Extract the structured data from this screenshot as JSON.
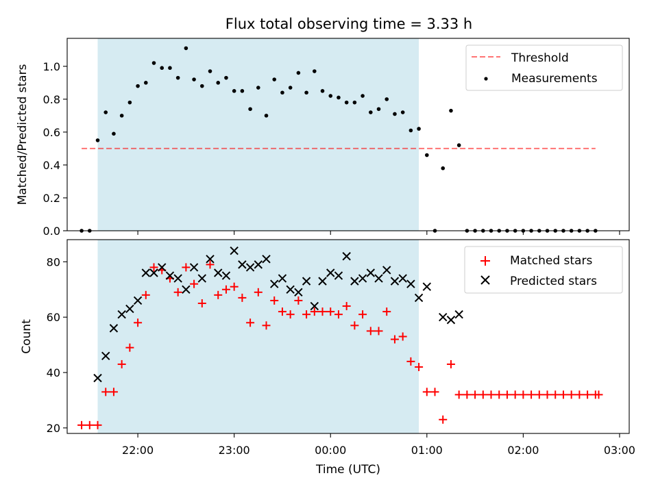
{
  "title": "Flux total observing time = 3.33 h",
  "colors": {
    "band": "#add8e6",
    "threshold": "#ff0000",
    "matched": "#ff0000",
    "predicted": "#000000",
    "measurement": "#000000"
  },
  "chart_data": [
    {
      "type": "scatter",
      "ylabel": "Matched/Predicted stars",
      "ylim": [
        0,
        1.17
      ],
      "yticks": [
        "0.0",
        "0.2",
        "0.4",
        "0.6",
        "0.8",
        "1.0"
      ],
      "xlim": [
        "21:16",
        "03:06"
      ],
      "shaded_interval": [
        "21:35",
        "00:55"
      ],
      "threshold": {
        "label": "Threshold",
        "value": 0.5,
        "x_range": [
          "21:25",
          "02:45"
        ]
      },
      "legend": [
        "Threshold",
        "Measurements"
      ],
      "legend_position": "top-right",
      "series": [
        {
          "name": "Measurements",
          "points": [
            [
              "21:25",
              0
            ],
            [
              "21:30",
              0
            ],
            [
              "21:35",
              0.55
            ],
            [
              "21:40",
              0.72
            ],
            [
              "21:45",
              0.59
            ],
            [
              "21:50",
              0.7
            ],
            [
              "21:55",
              0.78
            ],
            [
              "22:00",
              0.88
            ],
            [
              "22:05",
              0.9
            ],
            [
              "22:10",
              1.02
            ],
            [
              "22:15",
              0.99
            ],
            [
              "22:20",
              0.99
            ],
            [
              "22:25",
              0.93
            ],
            [
              "22:30",
              1.11
            ],
            [
              "22:35",
              0.92
            ],
            [
              "22:40",
              0.88
            ],
            [
              "22:45",
              0.97
            ],
            [
              "22:50",
              0.9
            ],
            [
              "22:55",
              0.93
            ],
            [
              "23:00",
              0.85
            ],
            [
              "23:05",
              0.85
            ],
            [
              "23:10",
              0.74
            ],
            [
              "23:15",
              0.87
            ],
            [
              "23:20",
              0.7
            ],
            [
              "23:25",
              0.92
            ],
            [
              "23:30",
              0.84
            ],
            [
              "23:35",
              0.87
            ],
            [
              "23:40",
              0.96
            ],
            [
              "23:45",
              0.84
            ],
            [
              "23:50",
              0.97
            ],
            [
              "23:55",
              0.85
            ],
            [
              "00:00",
              0.82
            ],
            [
              "00:05",
              0.81
            ],
            [
              "00:10",
              0.78
            ],
            [
              "00:15",
              0.78
            ],
            [
              "00:20",
              0.82
            ],
            [
              "00:25",
              0.72
            ],
            [
              "00:30",
              0.74
            ],
            [
              "00:35",
              0.8
            ],
            [
              "00:40",
              0.71
            ],
            [
              "00:45",
              0.72
            ],
            [
              "00:50",
              0.61
            ],
            [
              "00:55",
              0.62
            ],
            [
              "01:00",
              0.46
            ],
            [
              "01:05",
              0
            ],
            [
              "01:10",
              0.38
            ],
            [
              "01:15",
              0.73
            ],
            [
              "01:20",
              0.52
            ],
            [
              "01:25",
              0
            ],
            [
              "01:30",
              0
            ],
            [
              "01:35",
              0
            ],
            [
              "01:40",
              0
            ],
            [
              "01:45",
              0
            ],
            [
              "01:50",
              0
            ],
            [
              "01:55",
              0
            ],
            [
              "02:00",
              0
            ],
            [
              "02:05",
              0
            ],
            [
              "02:10",
              0
            ],
            [
              "02:15",
              0
            ],
            [
              "02:20",
              0
            ],
            [
              "02:25",
              0
            ],
            [
              "02:30",
              0
            ],
            [
              "02:35",
              0
            ],
            [
              "02:40",
              0
            ],
            [
              "02:45",
              0
            ]
          ]
        }
      ]
    },
    {
      "type": "scatter",
      "xlabel": "Time (UTC)",
      "ylabel": "Count",
      "ylim": [
        18,
        88
      ],
      "yticks": [
        "20",
        "40",
        "60",
        "80"
      ],
      "xlim": [
        "21:16",
        "03:06"
      ],
      "xticks": [
        "22:00",
        "23:00",
        "00:00",
        "01:00",
        "02:00",
        "03:00"
      ],
      "shaded_interval": [
        "21:35",
        "00:55"
      ],
      "legend": [
        "Matched stars",
        "Predicted stars"
      ],
      "legend_position": "top-right",
      "series": [
        {
          "name": "Matched stars",
          "marker": "+",
          "points": [
            [
              "21:25",
              21
            ],
            [
              "21:30",
              21
            ],
            [
              "21:35",
              21
            ],
            [
              "21:40",
              33
            ],
            [
              "21:45",
              33
            ],
            [
              "21:50",
              43
            ],
            [
              "21:55",
              49
            ],
            [
              "22:00",
              58
            ],
            [
              "22:05",
              68
            ],
            [
              "22:10",
              78
            ],
            [
              "22:15",
              77
            ],
            [
              "22:20",
              74
            ],
            [
              "22:25",
              69
            ],
            [
              "22:30",
              78
            ],
            [
              "22:35",
              72
            ],
            [
              "22:40",
              65
            ],
            [
              "22:45",
              79
            ],
            [
              "22:50",
              68
            ],
            [
              "22:55",
              70
            ],
            [
              "23:00",
              71
            ],
            [
              "23:05",
              67
            ],
            [
              "23:10",
              58
            ],
            [
              "23:15",
              69
            ],
            [
              "23:20",
              57
            ],
            [
              "23:25",
              66
            ],
            [
              "23:30",
              62
            ],
            [
              "23:35",
              61
            ],
            [
              "23:40",
              66
            ],
            [
              "23:45",
              61
            ],
            [
              "23:50",
              62
            ],
            [
              "23:55",
              62
            ],
            [
              "00:00",
              62
            ],
            [
              "00:05",
              61
            ],
            [
              "00:10",
              64
            ],
            [
              "00:15",
              57
            ],
            [
              "00:20",
              61
            ],
            [
              "00:25",
              55
            ],
            [
              "00:30",
              55
            ],
            [
              "00:35",
              62
            ],
            [
              "00:40",
              52
            ],
            [
              "00:45",
              53
            ],
            [
              "00:50",
              44
            ],
            [
              "00:55",
              42
            ],
            [
              "01:00",
              33
            ],
            [
              "01:05",
              33
            ],
            [
              "01:10",
              23
            ],
            [
              "01:15",
              43
            ],
            [
              "01:20",
              32
            ],
            [
              "01:25",
              32
            ],
            [
              "01:30",
              32
            ],
            [
              "01:35",
              32
            ],
            [
              "01:40",
              32
            ],
            [
              "01:45",
              32
            ],
            [
              "01:50",
              32
            ],
            [
              "01:55",
              32
            ],
            [
              "02:00",
              32
            ],
            [
              "02:05",
              32
            ],
            [
              "02:10",
              32
            ],
            [
              "02:15",
              32
            ],
            [
              "02:20",
              32
            ],
            [
              "02:25",
              32
            ],
            [
              "02:30",
              32
            ],
            [
              "02:35",
              32
            ],
            [
              "02:40",
              32
            ],
            [
              "02:45",
              32
            ],
            [
              "02:47",
              32
            ]
          ]
        },
        {
          "name": "Predicted stars",
          "marker": "x",
          "points": [
            [
              "21:35",
              38
            ],
            [
              "21:40",
              46
            ],
            [
              "21:45",
              56
            ],
            [
              "21:50",
              61
            ],
            [
              "21:55",
              63
            ],
            [
              "22:00",
              66
            ],
            [
              "22:05",
              76
            ],
            [
              "22:10",
              76
            ],
            [
              "22:15",
              78
            ],
            [
              "22:20",
              75
            ],
            [
              "22:25",
              74
            ],
            [
              "22:30",
              70
            ],
            [
              "22:35",
              78
            ],
            [
              "22:40",
              74
            ],
            [
              "22:45",
              81
            ],
            [
              "22:50",
              76
            ],
            [
              "22:55",
              75
            ],
            [
              "23:00",
              84
            ],
            [
              "23:05",
              79
            ],
            [
              "23:10",
              78
            ],
            [
              "23:15",
              79
            ],
            [
              "23:20",
              81
            ],
            [
              "23:25",
              72
            ],
            [
              "23:30",
              74
            ],
            [
              "23:35",
              70
            ],
            [
              "23:40",
              69
            ],
            [
              "23:45",
              73
            ],
            [
              "23:50",
              64
            ],
            [
              "23:55",
              73
            ],
            [
              "00:00",
              76
            ],
            [
              "00:05",
              75
            ],
            [
              "00:10",
              82
            ],
            [
              "00:15",
              73
            ],
            [
              "00:20",
              74
            ],
            [
              "00:25",
              76
            ],
            [
              "00:30",
              74
            ],
            [
              "00:35",
              77
            ],
            [
              "00:40",
              73
            ],
            [
              "00:45",
              74
            ],
            [
              "00:50",
              72
            ],
            [
              "00:55",
              67
            ],
            [
              "01:00",
              71
            ],
            [
              "01:10",
              60
            ],
            [
              "01:15",
              59
            ],
            [
              "01:20",
              61
            ]
          ]
        }
      ]
    }
  ]
}
